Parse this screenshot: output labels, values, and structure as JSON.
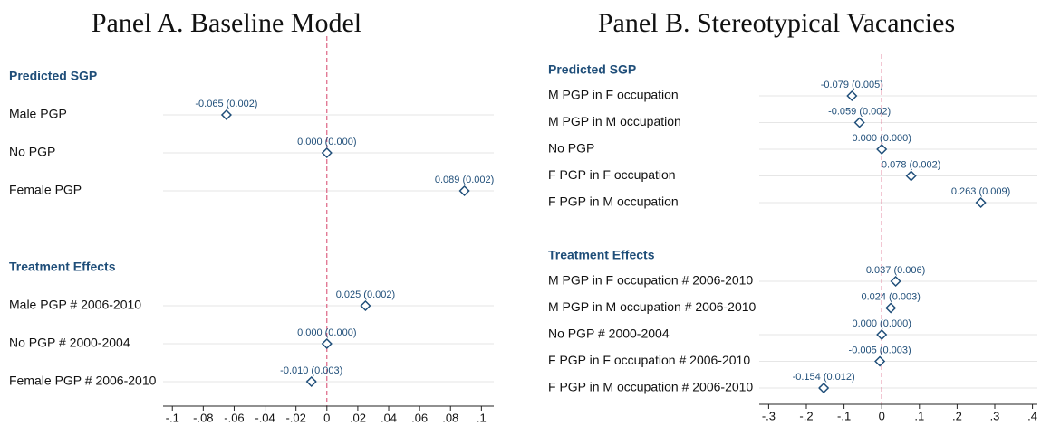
{
  "chart_data": [
    {
      "type": "coefplot",
      "title": "Panel A. Baseline Model",
      "groups": [
        {
          "heading": "Predicted SGP",
          "categories": [
            "Male PGP",
            "No PGP",
            "Female PGP"
          ],
          "values": [
            -0.065,
            0,
            0.089
          ],
          "errors": [
            0.002,
            0,
            0.002
          ],
          "value_labels": [
            "-0.065 (0.002)",
            "0.000 (0.000)",
            "0.089 (0.002)"
          ]
        },
        {
          "heading": "Treatment Effects",
          "categories": [
            "Male PGP # 2006-2010",
            "No PGP # 2000-2004",
            "Female PGP # 2006-2010"
          ],
          "values": [
            0.025,
            0,
            -0.01
          ],
          "errors": [
            0.002,
            0,
            0.003
          ],
          "value_labels": [
            "0.025 (0.002)",
            "0.000 (0.000)",
            "-0.010 (0.003)"
          ]
        }
      ],
      "xlim": [
        -0.106,
        0.108
      ],
      "xticks": [
        {
          "value": -0.1,
          "label": "-.1"
        },
        {
          "value": -0.08,
          "label": "-.08"
        },
        {
          "value": -0.06,
          "label": "-.06"
        },
        {
          "value": -0.04,
          "label": "-.04"
        },
        {
          "value": -0.02,
          "label": "-.02"
        },
        0,
        {
          "value": 0.02,
          "label": ".02"
        },
        {
          "value": 0.04,
          "label": ".04"
        },
        {
          "value": 0.06,
          "label": ".06"
        },
        {
          "value": 0.08,
          "label": ".08"
        },
        {
          "value": 0.1,
          "label": ".1"
        }
      ],
      "xline": 0,
      "color": "#1f4e79"
    },
    {
      "type": "coefplot",
      "title": "Panel B. Stereotypical Vacancies",
      "groups": [
        {
          "heading": "Predicted SGP",
          "categories": [
            "M PGP in F occupation",
            "M PGP in M occupation",
            "No PGP",
            "F PGP in F occupation",
            "F PGP in M occupation"
          ],
          "values": [
            -0.079,
            -0.059,
            0,
            0.078,
            0.263
          ],
          "errors": [
            0.005,
            0.002,
            0,
            0.002,
            0.009
          ],
          "value_labels": [
            "-0.079 (0.005)",
            "-0.059 (0.002)",
            "0.000 (0.000)",
            "0.078 (0.002)",
            "0.263 (0.009)"
          ]
        },
        {
          "heading": "Treatment Effects",
          "categories": [
            "M PGP in F occupation # 2006-2010",
            "M PGP in M occupation # 2006-2010",
            "No PGP # 2000-2004",
            "F PGP in F occupation # 2006-2010",
            "F PGP in M occupation # 2006-2010"
          ],
          "values": [
            0.037,
            0.024,
            0,
            -0.005,
            -0.154
          ],
          "errors": [
            0.006,
            0.003,
            0,
            0.003,
            0.012
          ],
          "value_labels": [
            "0.037 (0.006)",
            "0.024 (0.003)",
            "0.000 (0.000)",
            "-0.005 (0.003)",
            "-0.154 (0.012)"
          ]
        }
      ],
      "xlim": [
        -0.325,
        0.413
      ],
      "xticks": [
        {
          "value": -0.3,
          "label": "-.3"
        },
        {
          "value": -0.2,
          "label": "-.2"
        },
        {
          "value": -0.1,
          "label": "-.1"
        },
        0,
        {
          "value": 0.1,
          "label": ".1"
        },
        {
          "value": 0.2,
          "label": ".2"
        },
        {
          "value": 0.3,
          "label": ".3"
        },
        {
          "value": 0.4,
          "label": ".4"
        }
      ],
      "xline": 0,
      "color": "#1f4e79"
    }
  ]
}
